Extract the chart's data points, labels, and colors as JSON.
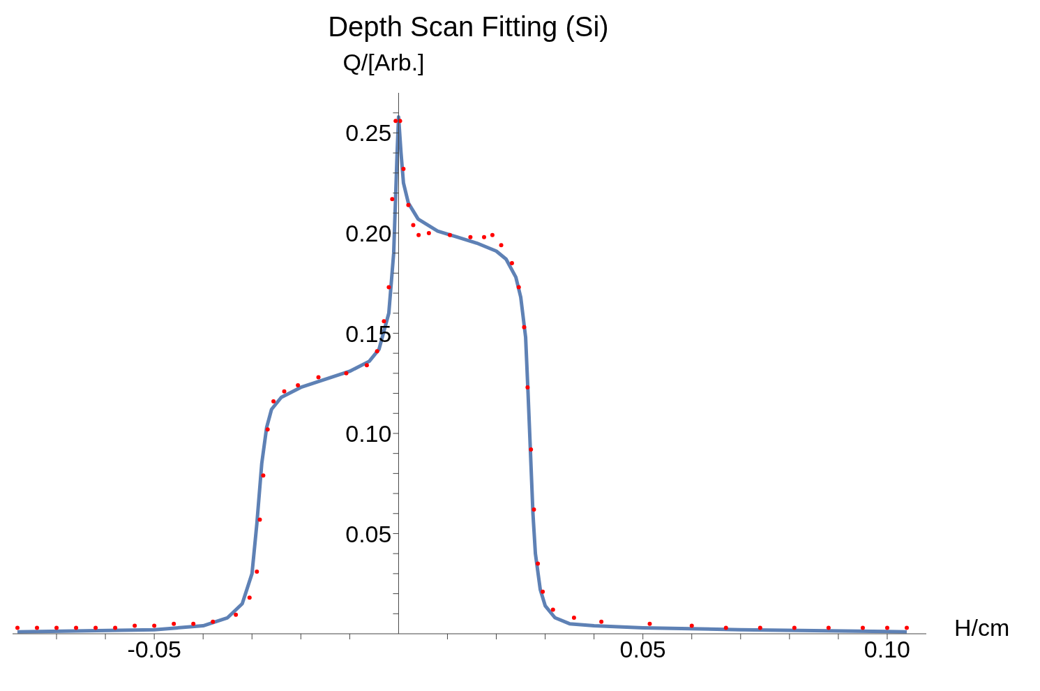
{
  "chart_data": {
    "type": "scatter",
    "title": "Depth Scan Fitting (Si)",
    "xlabel": "H/cm",
    "ylabel": "Q/[Arb.]",
    "xlim": [
      -0.079,
      0.108
    ],
    "ylim": [
      0,
      0.27
    ],
    "xticks": [
      {
        "value": -0.07,
        "label": null
      },
      {
        "value": -0.06,
        "label": null
      },
      -0.05,
      {
        "value": -0.04,
        "label": null
      },
      {
        "value": -0.03,
        "label": null
      },
      {
        "value": -0.02,
        "label": null
      },
      {
        "value": -0.01,
        "label": null
      },
      {
        "value": 0.01,
        "label": null
      },
      {
        "value": 0.02,
        "label": null
      },
      {
        "value": 0.03,
        "label": null
      },
      {
        "value": 0.04,
        "label": null
      },
      0.05,
      {
        "value": 0.06,
        "label": null
      },
      {
        "value": 0.07,
        "label": null
      },
      {
        "value": 0.08,
        "label": null
      },
      {
        "value": 0.09,
        "label": null
      },
      {
        "value": 0.1,
        "label": "0.10"
      }
    ],
    "yticks": [
      {
        "value": 0.01,
        "label": null
      },
      {
        "value": 0.02,
        "label": null
      },
      {
        "value": 0.03,
        "label": null
      },
      {
        "value": 0.04,
        "label": null
      },
      0.05,
      {
        "value": 0.06,
        "label": null
      },
      {
        "value": 0.07,
        "label": null
      },
      {
        "value": 0.08,
        "label": null
      },
      {
        "value": 0.09,
        "label": null
      },
      {
        "value": 0.1,
        "label": "0.10"
      },
      {
        "value": 0.11,
        "label": null
      },
      {
        "value": 0.12,
        "label": null
      },
      {
        "value": 0.13,
        "label": null
      },
      {
        "value": 0.14,
        "label": null
      },
      0.15,
      {
        "value": 0.16,
        "label": null
      },
      {
        "value": 0.17,
        "label": null
      },
      {
        "value": 0.18,
        "label": null
      },
      {
        "value": 0.19,
        "label": null
      },
      {
        "value": 0.2,
        "label": "0.20"
      },
      {
        "value": 0.21,
        "label": null
      },
      {
        "value": 0.22,
        "label": null
      },
      {
        "value": 0.23,
        "label": null
      },
      {
        "value": 0.24,
        "label": null
      },
      0.25,
      {
        "value": 0.26,
        "label": null
      }
    ],
    "series": [
      {
        "marker": "circle",
        "color": "#ff0000",
        "x": [
          -0.078,
          -0.074,
          -0.07,
          -0.066,
          -0.062,
          -0.058,
          -0.054,
          -0.05,
          -0.046,
          -0.042,
          -0.038,
          -0.0333,
          -0.0305,
          -0.029,
          -0.0284,
          -0.0277,
          -0.0268,
          -0.0256,
          -0.0234,
          -0.0206,
          -0.0164,
          -0.0107,
          -0.0065,
          -0.0044,
          -0.003,
          -0.002,
          -0.0013,
          -0.0006,
          0.0003,
          0.001,
          0.002,
          0.003,
          0.0041,
          0.0062,
          0.0105,
          0.0147,
          0.0175,
          0.0192,
          0.021,
          0.0232,
          0.0246,
          0.0257,
          0.0264,
          0.0271,
          0.0277,
          0.0285,
          0.0295,
          0.0316,
          0.0359,
          0.0415,
          0.0514,
          0.06,
          0.067,
          0.074,
          0.081,
          0.088,
          0.095,
          0.1,
          0.104
        ],
        "values": [
          0.003,
          0.003,
          0.003,
          0.003,
          0.003,
          0.003,
          0.004,
          0.004,
          0.005,
          0.005,
          0.006,
          0.0095,
          0.018,
          0.031,
          0.057,
          0.079,
          0.102,
          0.116,
          0.121,
          0.124,
          0.128,
          0.13,
          0.134,
          0.141,
          0.156,
          0.173,
          0.217,
          0.256,
          0.256,
          0.232,
          0.214,
          0.204,
          0.199,
          0.2,
          0.199,
          0.198,
          0.198,
          0.199,
          0.194,
          0.185,
          0.173,
          0.153,
          0.123,
          0.092,
          0.062,
          0.035,
          0.021,
          0.012,
          0.008,
          0.006,
          0.005,
          0.004,
          0.003,
          0.003,
          0.003,
          0.003,
          0.003,
          0.003,
          0.003
        ]
      },
      {
        "type": "line",
        "color": "#5e81b5",
        "x": [
          -0.078,
          -0.05,
          -0.04,
          -0.035,
          -0.032,
          -0.03,
          -0.029,
          -0.028,
          -0.027,
          -0.026,
          -0.024,
          -0.02,
          -0.015,
          -0.01,
          -0.006,
          -0.004,
          -0.002,
          -0.001,
          -0.0003,
          0,
          0.0005,
          0.001,
          0.002,
          0.004,
          0.008,
          0.012,
          0.016,
          0.02,
          0.022,
          0.024,
          0.025,
          0.026,
          0.0265,
          0.027,
          0.0275,
          0.028,
          0.029,
          0.03,
          0.032,
          0.035,
          0.04,
          0.05,
          0.07,
          0.104
        ],
        "values": [
          0.001,
          0.002,
          0.004,
          0.008,
          0.015,
          0.03,
          0.055,
          0.085,
          0.103,
          0.112,
          0.118,
          0.123,
          0.127,
          0.131,
          0.136,
          0.142,
          0.16,
          0.19,
          0.24,
          0.258,
          0.24,
          0.225,
          0.215,
          0.207,
          0.201,
          0.198,
          0.195,
          0.191,
          0.187,
          0.178,
          0.168,
          0.148,
          0.12,
          0.09,
          0.06,
          0.04,
          0.022,
          0.014,
          0.008,
          0.005,
          0.004,
          0.003,
          0.002,
          0.001
        ]
      }
    ]
  }
}
